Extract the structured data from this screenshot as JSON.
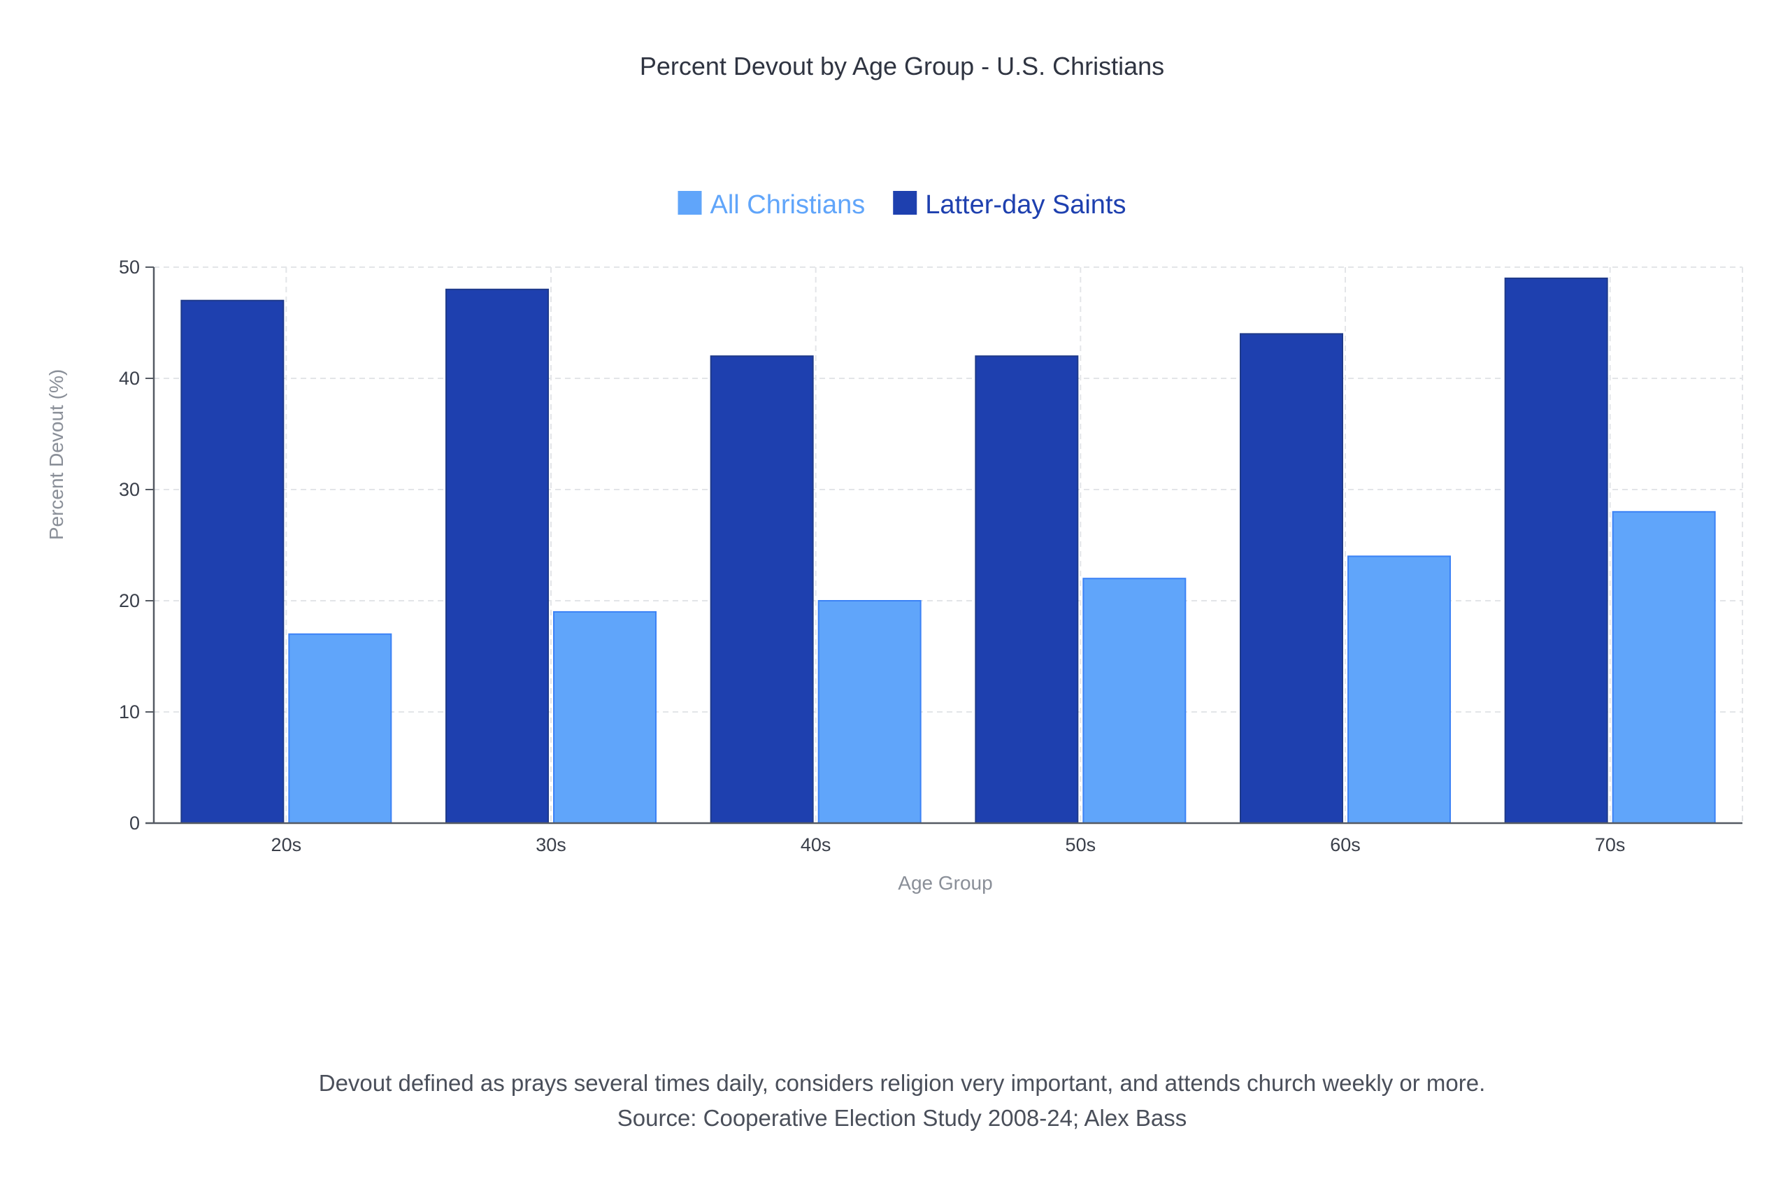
{
  "chart_data": {
    "type": "bar",
    "title": "Percent Devout by Age Group - U.S. Christians",
    "xlabel": "Age Group",
    "ylabel": "Percent Devout (%)",
    "categories": [
      "20s",
      "30s",
      "40s",
      "50s",
      "60s",
      "70s"
    ],
    "series": [
      {
        "name": "All Christians",
        "values": [
          17,
          19,
          20,
          22,
          24,
          28
        ],
        "color": "#60a5fa"
      },
      {
        "name": "Latter-day Saints",
        "values": [
          47,
          48,
          42,
          42,
          44,
          49
        ],
        "color": "#1e40af"
      }
    ],
    "ylim": [
      0,
      50
    ],
    "yticks": [
      "0",
      "10",
      "20",
      "30",
      "40",
      "50"
    ],
    "grid": true,
    "legend_position": "top-center",
    "footnote_lines": [
      "Devout defined as prays several times daily, considers religion very important, and attends church weekly or more.",
      "Source: Cooperative Election Study 2008-24; Alex Bass"
    ]
  }
}
